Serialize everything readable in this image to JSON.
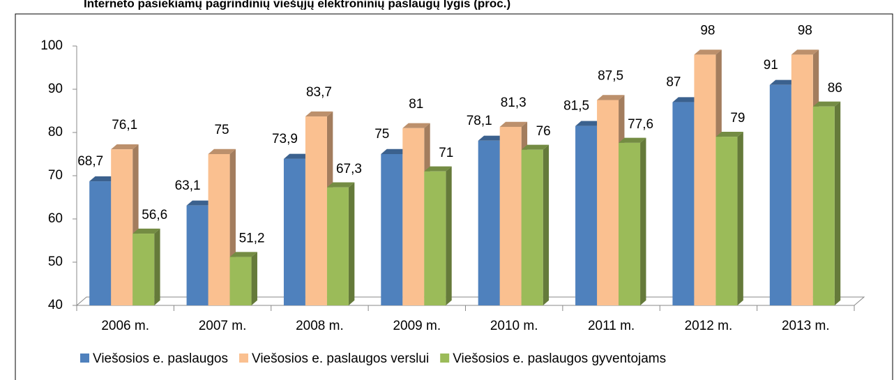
{
  "chart_data": {
    "type": "bar3d",
    "title": "Interneto pasiekiamų pagrindinių viešųjų elektroninių paslaugų lygis (proc.)",
    "categories": [
      "2006 m.",
      "2007 m.",
      "2008 m.",
      "2009 m.",
      "2010 m.",
      "2011 m.",
      "2012 m.",
      "2013 m."
    ],
    "series": [
      {
        "name": "Viešosios e. paslaugos",
        "color": "#4f81bd",
        "values": [
          68.7,
          63.1,
          73.9,
          75,
          78.1,
          81.5,
          87,
          91
        ],
        "value_labels": [
          "68,7",
          "63,1",
          "73,9",
          "75",
          "78,1",
          "81,5",
          "87",
          "91"
        ]
      },
      {
        "name": "Viešosios e. paslaugos verslui",
        "color": "#fac090",
        "values": [
          76.1,
          75,
          83.7,
          81,
          81.3,
          87.5,
          98,
          98
        ],
        "value_labels": [
          "76,1",
          "75",
          "83,7",
          "81",
          "81,3",
          "87,5",
          "98",
          "98"
        ]
      },
      {
        "name": "Viešosios e. paslaugos gyventojams",
        "color": "#9bbb59",
        "values": [
          56.6,
          51.2,
          67.3,
          71,
          76,
          77.6,
          79,
          86
        ],
        "value_labels": [
          "56,6",
          "51,2",
          "67,3",
          "71",
          "76",
          "77,6",
          "79",
          "86"
        ]
      }
    ],
    "ylim": [
      40,
      100
    ],
    "yticks": [
      40,
      50,
      60,
      70,
      80,
      90,
      100
    ],
    "legend": "bottom"
  }
}
